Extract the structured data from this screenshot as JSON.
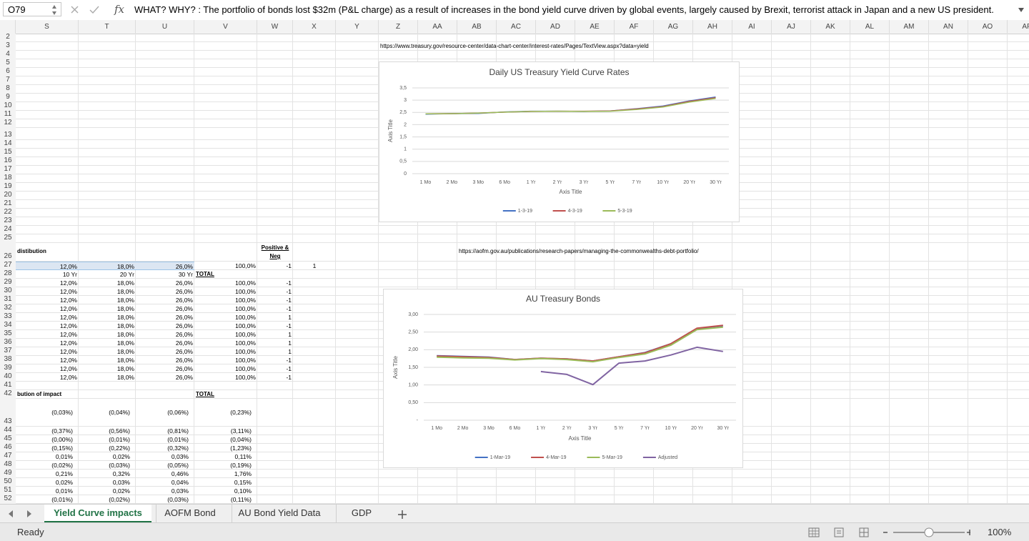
{
  "formula_bar": {
    "name_box": "O79",
    "fx": "fx",
    "formula": "WHAT? WHY? : The portfolio of bonds lost $32m (P&L charge) as a result of increases in the bond yield curve driven by global events, largely caused by Brexit, terrorist attack in Japan and a new US president."
  },
  "columns": [
    "S",
    "T",
    "U",
    "V",
    "W",
    "X",
    "Y",
    "Z",
    "AA",
    "AB",
    "AC",
    "AD",
    "AE",
    "AF",
    "AG",
    "AH",
    "AI",
    "AJ",
    "AK",
    "AL",
    "AM",
    "AN",
    "AO",
    "AP"
  ],
  "row_numbers": [
    2,
    3,
    4,
    5,
    6,
    7,
    8,
    9,
    10,
    11,
    12,
    13,
    14,
    15,
    16,
    17,
    18,
    19,
    20,
    21,
    22,
    23,
    24,
    25,
    26,
    27,
    28,
    29,
    30,
    31,
    32,
    33,
    34,
    35,
    36,
    37,
    38,
    39,
    40,
    41,
    42,
    43,
    44,
    45,
    46,
    47,
    48,
    49,
    50,
    51,
    52
  ],
  "rows": {
    "3": {
      "Z": "https://www.treasury.gov/resource-center/data-chart-center/interest-rates/Pages/TextView.aspx?data=yield"
    },
    "26": {
      "S": "distibution",
      "W": "Positive & Neg",
      "AB": "https://aofm.gov.au/publications/research-papers/managing-the-commonwealths-debt-portfolio/"
    },
    "27": {
      "S": "12,0%",
      "T": "18,0%",
      "U": "26,0%",
      "V": "100,0%",
      "W": "-1",
      "X": "1"
    },
    "28": {
      "S": "10 Yr",
      "T": "20 Yr",
      "U": "30 Yr",
      "V": "TOTAL"
    },
    "29": {
      "S": "12,0%",
      "T": "18,0%",
      "U": "26,0%",
      "V": "100,0%",
      "W": "-1"
    },
    "30": {
      "S": "12,0%",
      "T": "18,0%",
      "U": "26,0%",
      "V": "100,0%",
      "W": "-1"
    },
    "31": {
      "S": "12,0%",
      "T": "18,0%",
      "U": "26,0%",
      "V": "100,0%",
      "W": "-1"
    },
    "32": {
      "S": "12,0%",
      "T": "18,0%",
      "U": "26,0%",
      "V": "100,0%",
      "W": "-1"
    },
    "33": {
      "S": "12,0%",
      "T": "18,0%",
      "U": "26,0%",
      "V": "100,0%",
      "W": "1"
    },
    "34": {
      "S": "12,0%",
      "T": "18,0%",
      "U": "26,0%",
      "V": "100,0%",
      "W": "-1"
    },
    "35": {
      "S": "12,0%",
      "T": "18,0%",
      "U": "26,0%",
      "V": "100,0%",
      "W": "1"
    },
    "36": {
      "S": "12,0%",
      "T": "18,0%",
      "U": "26,0%",
      "V": "100,0%",
      "W": "1"
    },
    "37": {
      "S": "12,0%",
      "T": "18,0%",
      "U": "26,0%",
      "V": "100,0%",
      "W": "1"
    },
    "38": {
      "S": "12,0%",
      "T": "18,0%",
      "U": "26,0%",
      "V": "100,0%",
      "W": "-1"
    },
    "39": {
      "S": "12,0%",
      "T": "18,0%",
      "U": "26,0%",
      "V": "100,0%",
      "W": "-1"
    },
    "40": {
      "S": "12,0%",
      "T": "18,0%",
      "U": "26,0%",
      "V": "100,0%",
      "W": "-1"
    },
    "42": {
      "S": "bution of impact",
      "V": "TOTAL"
    },
    "43": {
      "S": "(0,03%)",
      "T": "(0,04%)",
      "U": "(0,06%)",
      "V": "(0,23%)"
    },
    "44": {
      "S": "(0,37%)",
      "T": "(0,56%)",
      "U": "(0,81%)",
      "V": "(3,11%)"
    },
    "45": {
      "S": "(0,00%)",
      "T": "(0,01%)",
      "U": "(0,01%)",
      "V": "(0,04%)"
    },
    "46": {
      "S": "(0,15%)",
      "T": "(0,22%)",
      "U": "(0,32%)",
      "V": "(1,23%)"
    },
    "47": {
      "S": "0,01%",
      "T": "0,02%",
      "U": "0,03%",
      "V": "0,11%"
    },
    "48": {
      "S": "(0,02%)",
      "T": "(0,03%)",
      "U": "(0,05%)",
      "V": "(0,19%)"
    },
    "49": {
      "S": "0,21%",
      "T": "0,32%",
      "U": "0,46%",
      "V": "1,76%"
    },
    "50": {
      "S": "0,02%",
      "T": "0,03%",
      "U": "0,04%",
      "V": "0,15%"
    },
    "51": {
      "S": "0,01%",
      "T": "0,02%",
      "U": "0,03%",
      "V": "0,10%"
    },
    "52": {
      "S": "(0,01%)",
      "T": "(0,02%)",
      "U": "(0,03%)",
      "V": "(0,11%)"
    }
  },
  "chart_data": [
    {
      "type": "line",
      "title": "Daily US Treasury Yield Curve Rates",
      "x_label": "Axis Title",
      "y_label": "Axis Title",
      "categories": [
        "1 Mo",
        "2 Mo",
        "3 Mo",
        "6 Mo",
        "1 Yr",
        "2 Yr",
        "3 Yr",
        "5 Yr",
        "7 Yr",
        "10 Yr",
        "20 Yr",
        "30 Yr"
      ],
      "series": [
        {
          "name": "1-3-19",
          "color": "#4472c4",
          "values": [
            2.43,
            2.45,
            2.46,
            2.52,
            2.55,
            2.55,
            2.54,
            2.56,
            2.65,
            2.76,
            2.97,
            3.13
          ]
        },
        {
          "name": "4-3-19",
          "color": "#c0504d",
          "values": [
            2.44,
            2.45,
            2.47,
            2.51,
            2.54,
            2.55,
            2.55,
            2.56,
            2.64,
            2.74,
            2.95,
            3.1
          ]
        },
        {
          "name": "5-3-19",
          "color": "#9bbb59",
          "values": [
            2.44,
            2.45,
            2.47,
            2.51,
            2.54,
            2.55,
            2.54,
            2.55,
            2.62,
            2.72,
            2.92,
            3.07
          ]
        }
      ],
      "ylim": [
        0,
        3.5
      ],
      "yticks": [
        0,
        {
          "value": 0.5,
          "label": "0,5"
        },
        1,
        {
          "value": 1.5,
          "label": "1,5"
        },
        2,
        {
          "value": 2.5,
          "label": "2,5"
        },
        3,
        {
          "value": 3.5,
          "label": "3,5"
        }
      ],
      "grid": true,
      "legend": "bottom"
    },
    {
      "type": "line",
      "title": "AU Treasury  Bonds",
      "x_label": "Axis Title",
      "y_label": "Axis Title",
      "categories": [
        "1 Mo",
        "2 Mo",
        "3 Mo",
        "6 Mo",
        "1 Yr",
        "2 Yr",
        "3 Yr",
        "5 Yr",
        "7 Yr",
        "10 Yr",
        "20 Yr",
        "30 Yr"
      ],
      "series": [
        {
          "name": "1-Mar-19",
          "color": "#4472c4",
          "values": [
            1.83,
            1.81,
            1.79,
            1.72,
            1.76,
            1.74,
            1.68,
            1.8,
            1.92,
            2.17,
            2.6,
            2.68
          ]
        },
        {
          "name": "4-Mar-19",
          "color": "#c0504d",
          "values": [
            1.82,
            1.8,
            1.78,
            1.72,
            1.76,
            1.74,
            1.68,
            1.8,
            1.91,
            2.17,
            2.61,
            2.69
          ]
        },
        {
          "name": "5-Mar-19",
          "color": "#9bbb59",
          "values": [
            1.79,
            1.77,
            1.76,
            1.71,
            1.75,
            1.72,
            1.66,
            1.78,
            1.88,
            2.13,
            2.57,
            2.64
          ]
        },
        {
          "name": "Adjusted",
          "color": "#8064a2",
          "values": [
            null,
            null,
            null,
            null,
            1.38,
            1.3,
            1.01,
            1.62,
            1.68,
            1.85,
            2.07,
            1.95
          ]
        }
      ],
      "ylim": [
        0,
        3
      ],
      "yticks": [
        {
          "value": 0,
          "label": "-"
        },
        {
          "value": 0.5,
          "label": "0,50"
        },
        {
          "value": 1,
          "label": "1,00"
        },
        {
          "value": 1.5,
          "label": "1,50"
        },
        {
          "value": 2,
          "label": "2,00"
        },
        {
          "value": 2.5,
          "label": "2,50"
        },
        {
          "value": 3,
          "label": "3,00"
        }
      ],
      "grid": true,
      "legend": "bottom"
    }
  ],
  "sheet_tabs": [
    "Yield Curve impacts",
    "AOFM Bond",
    "AU Bond Yield Data",
    "GDP"
  ],
  "status_bar": {
    "mode": "Ready",
    "zoom": "100%"
  }
}
